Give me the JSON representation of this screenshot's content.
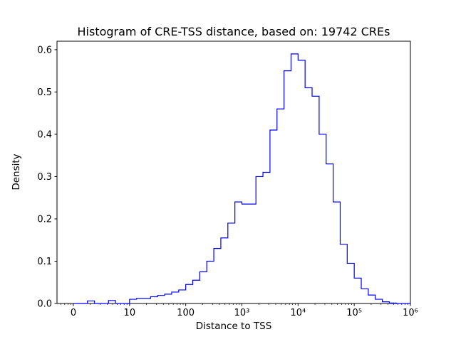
{
  "figure": {
    "background": "#ffffff"
  },
  "chart_data": {
    "type": "histogram",
    "histtype": "step",
    "title": "Histogram of CRE-TSS distance, based on: 19742 CREs",
    "xlabel": "Distance to TSS",
    "ylabel": "Density",
    "x_scale": "log10",
    "line_color": "#0000ff",
    "ylim": [
      0,
      0.62
    ],
    "xlim_log10": [
      -0.2917,
      6
    ],
    "grid": false,
    "legend": "none",
    "y_ticks": [
      {
        "value": 0.0,
        "label": "0.0"
      },
      {
        "value": 0.1,
        "label": "0.1"
      },
      {
        "value": 0.2,
        "label": "0.2"
      },
      {
        "value": 0.3,
        "label": "0.3"
      },
      {
        "value": 0.4,
        "label": "0.4"
      },
      {
        "value": 0.5,
        "label": "0.5"
      },
      {
        "value": 0.6,
        "label": "0.6"
      }
    ],
    "x_ticks": [
      {
        "log10": 0,
        "label": "0"
      },
      {
        "log10": 1,
        "label": "10"
      },
      {
        "log10": 2,
        "label": "100"
      },
      {
        "log10": 3,
        "label": "10³"
      },
      {
        "log10": 4,
        "label": "10⁴"
      },
      {
        "log10": 5,
        "label": "10⁵"
      },
      {
        "log10": 6,
        "label": "10⁶"
      }
    ],
    "bin_start_log10": 0,
    "bin_width_log10": 0.125,
    "densities": [
      0,
      0,
      0.006,
      0,
      0,
      0.007,
      0,
      0,
      0.01,
      0.012,
      0.012,
      0.016,
      0.019,
      0.022,
      0.027,
      0.032,
      0.045,
      0.055,
      0.075,
      0.1,
      0.13,
      0.155,
      0.19,
      0.24,
      0.235,
      0.235,
      0.3,
      0.31,
      0.41,
      0.46,
      0.55,
      0.59,
      0.575,
      0.51,
      0.49,
      0.4,
      0.33,
      0.24,
      0.14,
      0.095,
      0.06,
      0.035,
      0.02,
      0.01,
      0.004,
      0.001,
      0,
      0
    ]
  }
}
